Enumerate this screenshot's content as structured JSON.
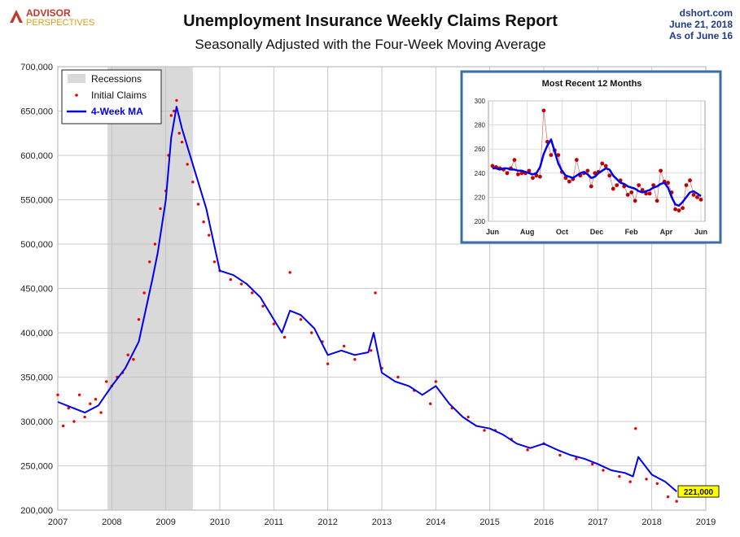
{
  "brand": {
    "line1": "ADVISOR",
    "line2": "PERSPECTIVES",
    "color_primary": "#c0392b",
    "color_secondary": "#d4a017"
  },
  "header": {
    "title": "Unemployment Insurance Weekly Claims Report",
    "subtitle": "Seasonally Adjusted with the Four-Week Moving Average",
    "source": "dshort.com",
    "date": "June 21, 2018",
    "as_of": "As of June 16"
  },
  "colors": {
    "ma_line": "#0000ee",
    "claims_dot": "#ee0000",
    "recession": "#d9d9d9",
    "grid": "#bdbdbd",
    "inset_border": "#3a6ea5",
    "callout_bg": "#ffff00"
  },
  "callout": "221,000",
  "chart_data": [
    {
      "type": "line",
      "title": "Unemployment Insurance Weekly Claims Report",
      "subtitle": "Seasonally Adjusted with the Four-Week Moving Average",
      "xlabel": "",
      "ylabel": "",
      "x_ticks": [
        "2007",
        "2008",
        "2009",
        "2010",
        "2011",
        "2012",
        "2013",
        "2014",
        "2015",
        "2016",
        "2017",
        "2018",
        "2019"
      ],
      "y_ticks": [
        "200,000",
        "250,000",
        "300,000",
        "350,000",
        "400,000",
        "450,000",
        "500,000",
        "550,000",
        "600,000",
        "650,000",
        "700,000"
      ],
      "xlim": [
        2007,
        2019
      ],
      "ylim": [
        200000,
        700000
      ],
      "grid": true,
      "legend_position": "top-left",
      "legend": [
        "Recessions",
        "Initial Claims",
        "4-Week MA"
      ],
      "recession": [
        2007.92,
        2009.5
      ],
      "series": [
        {
          "name": "4-Week MA",
          "x": [
            2007.0,
            2007.25,
            2007.5,
            2007.75,
            2008.0,
            2008.25,
            2008.5,
            2008.75,
            2008.85,
            2009.0,
            2009.1,
            2009.2,
            2009.3,
            2009.5,
            2009.75,
            2010.0,
            2010.25,
            2010.5,
            2010.75,
            2011.0,
            2011.15,
            2011.3,
            2011.5,
            2011.75,
            2012.0,
            2012.25,
            2012.5,
            2012.75,
            2012.85,
            2013.0,
            2013.25,
            2013.5,
            2013.75,
            2014.0,
            2014.25,
            2014.5,
            2014.75,
            2015.0,
            2015.25,
            2015.5,
            2015.75,
            2016.0,
            2016.25,
            2016.5,
            2016.75,
            2017.0,
            2017.25,
            2017.5,
            2017.65,
            2017.75,
            2018.0,
            2018.25,
            2018.46
          ],
          "values": [
            322000,
            316000,
            310000,
            318000,
            340000,
            360000,
            390000,
            460000,
            490000,
            550000,
            620000,
            655000,
            630000,
            590000,
            540000,
            470000,
            465000,
            455000,
            440000,
            415000,
            400000,
            425000,
            420000,
            405000,
            375000,
            380000,
            375000,
            378000,
            400000,
            355000,
            345000,
            340000,
            330000,
            340000,
            320000,
            305000,
            295000,
            292000,
            285000,
            275000,
            270000,
            275000,
            268000,
            262000,
            258000,
            252000,
            245000,
            242000,
            238000,
            260000,
            240000,
            232000,
            221000
          ]
        },
        {
          "name": "Initial Claims",
          "x": [
            2007.0,
            2007.1,
            2007.2,
            2007.3,
            2007.4,
            2007.5,
            2007.6,
            2007.7,
            2007.8,
            2007.9,
            2008.0,
            2008.1,
            2008.2,
            2008.3,
            2008.4,
            2008.5,
            2008.6,
            2008.7,
            2008.8,
            2008.9,
            2009.0,
            2009.05,
            2009.1,
            2009.15,
            2009.2,
            2009.25,
            2009.3,
            2009.4,
            2009.5,
            2009.6,
            2009.7,
            2009.8,
            2009.9,
            2010.0,
            2010.2,
            2010.4,
            2010.6,
            2010.8,
            2011.0,
            2011.2,
            2011.3,
            2011.5,
            2011.7,
            2011.9,
            2012.0,
            2012.3,
            2012.5,
            2012.8,
            2012.88,
            2013.0,
            2013.3,
            2013.6,
            2013.9,
            2014.0,
            2014.3,
            2014.6,
            2014.9,
            2015.1,
            2015.4,
            2015.7,
            2016.0,
            2016.3,
            2016.6,
            2016.9,
            2017.1,
            2017.4,
            2017.6,
            2017.7,
            2017.9,
            2018.1,
            2018.3,
            2018.46
          ],
          "values": [
            330000,
            295000,
            315000,
            300000,
            330000,
            305000,
            320000,
            325000,
            310000,
            345000,
            340000,
            350000,
            355000,
            375000,
            370000,
            415000,
            445000,
            480000,
            500000,
            540000,
            560000,
            600000,
            645000,
            650000,
            662000,
            625000,
            615000,
            590000,
            570000,
            545000,
            525000,
            510000,
            480000,
            470000,
            460000,
            455000,
            445000,
            430000,
            410000,
            395000,
            468000,
            415000,
            400000,
            390000,
            365000,
            385000,
            370000,
            380000,
            445000,
            360000,
            350000,
            335000,
            320000,
            345000,
            315000,
            305000,
            290000,
            290000,
            280000,
            268000,
            275000,
            262000,
            258000,
            252000,
            245000,
            238000,
            232000,
            292000,
            235000,
            230000,
            215000,
            210000
          ]
        }
      ]
    },
    {
      "type": "line",
      "title": "Most Recent 12 Months",
      "xlabel": "",
      "ylabel": "",
      "x_ticks": [
        "Jun",
        "Aug",
        "Oct",
        "Dec",
        "Feb",
        "Apr",
        "Jun"
      ],
      "y_ticks": [
        "200",
        "220",
        "240",
        "260",
        "280",
        "300"
      ],
      "ylim": [
        200,
        300
      ],
      "grid": true,
      "series": [
        {
          "name": "4-Week MA",
          "values": [
            244,
            244,
            243,
            244,
            244,
            243,
            243,
            242,
            242,
            241,
            240,
            239,
            240,
            245,
            256,
            263,
            268,
            258,
            248,
            242,
            238,
            237,
            236,
            238,
            240,
            241,
            239,
            236,
            237,
            240,
            242,
            244,
            243,
            238,
            235,
            232,
            231,
            229,
            228,
            227,
            225,
            224,
            225,
            226,
            228,
            229,
            231,
            232,
            228,
            220,
            214,
            213,
            216,
            220,
            224,
            225,
            223,
            221
          ]
        },
        {
          "name": "Initial Claims",
          "values": [
            246,
            245,
            244,
            243,
            240,
            244,
            251,
            239,
            240,
            240,
            242,
            236,
            238,
            237,
            292,
            266,
            255,
            259,
            255,
            241,
            236,
            233,
            235,
            251,
            238,
            240,
            242,
            229,
            240,
            241,
            248,
            246,
            238,
            227,
            230,
            234,
            229,
            222,
            224,
            217,
            230,
            226,
            223,
            223,
            230,
            217,
            242,
            233,
            232,
            224,
            210,
            209,
            211,
            230,
            234,
            222,
            220,
            218
          ]
        }
      ]
    }
  ]
}
